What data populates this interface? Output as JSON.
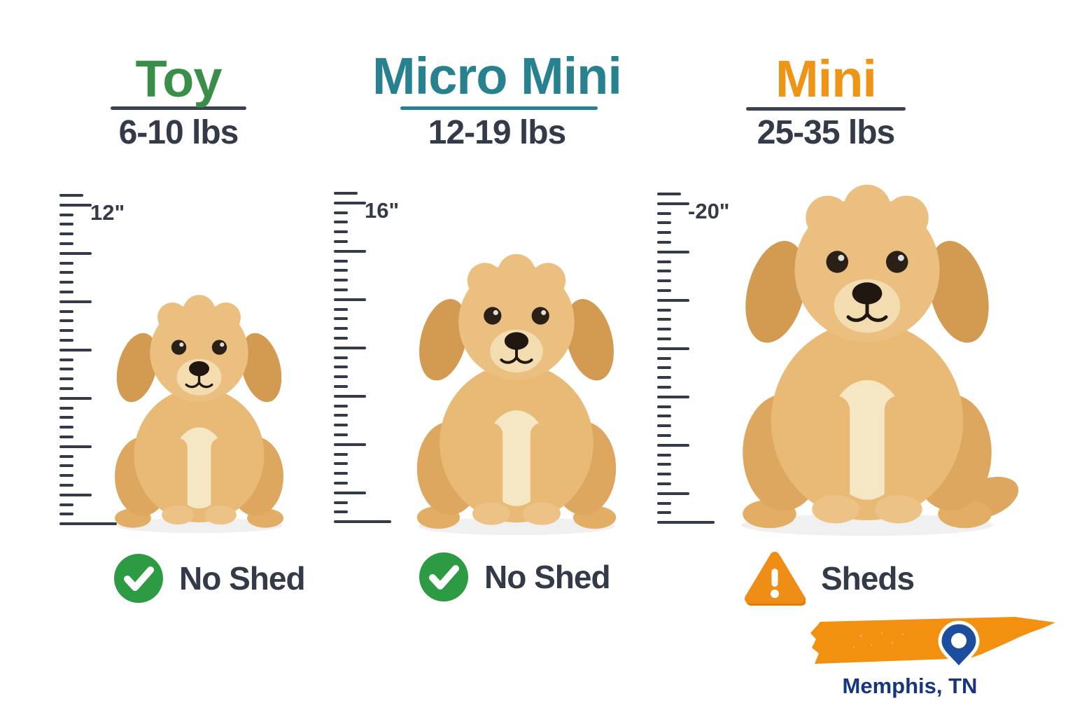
{
  "columns": [
    {
      "name": "Toy",
      "weight": "6-10 lbs",
      "height_label": "12\"",
      "shed_type": "check",
      "shed_label": "No Shed",
      "accent_color": "#3a8e49"
    },
    {
      "name": "Micro Mini",
      "weight": "12-19 lbs",
      "height_label": "16\"",
      "shed_type": "check",
      "shed_label": "No Shed",
      "accent_color": "#27818f"
    },
    {
      "name": "Mini",
      "weight": "25-35 lbs",
      "height_label": "-20\"",
      "shed_type": "warning",
      "shed_label": "Sheds",
      "accent_color": "#ee9417"
    }
  ],
  "location": {
    "city_label": "Memphis, TN",
    "state_shape": "Tennessee"
  },
  "colors": {
    "toy_green": "#3a8e49",
    "micro_mini_teal": "#27818f",
    "mini_orange": "#ee9417",
    "dark_text": "#333b48",
    "check_green": "#2d9b43",
    "warning_orange": "#ef8e17",
    "map_orange": "#f2900f",
    "pin_blue": "#1d4e9e",
    "city_text_blue": "#16377f"
  }
}
